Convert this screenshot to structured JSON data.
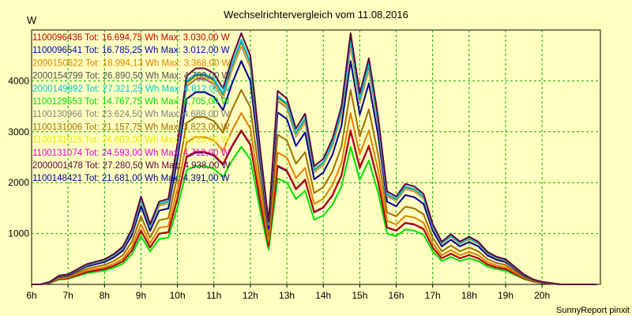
{
  "chart_data": {
    "type": "line",
    "title": "Wechselrichtervergleich vom 11.08.2016",
    "ylabel": "W",
    "footer": "SunnyReport pinxit",
    "ylim": [
      0,
      5000
    ],
    "xlim": [
      6,
      21.6
    ],
    "yticks": [
      1000,
      2000,
      3000,
      4000
    ],
    "xticks": [
      {
        "v": 6,
        "label": "6h"
      },
      {
        "v": 7,
        "label": "7h"
      },
      {
        "v": 8,
        "label": "8h"
      },
      {
        "v": 9,
        "label": "9h"
      },
      {
        "v": 10,
        "label": "10h"
      },
      {
        "v": 11,
        "label": "11h"
      },
      {
        "v": 12,
        "label": "12h"
      },
      {
        "v": 13,
        "label": "13h"
      },
      {
        "v": 14,
        "label": "14h"
      },
      {
        "v": 15,
        "label": "15h"
      },
      {
        "v": 16,
        "label": "16h"
      },
      {
        "v": 17,
        "label": "17h"
      },
      {
        "v": 18,
        "label": "18h"
      },
      {
        "v": 19,
        "label": "19h"
      },
      {
        "v": 20,
        "label": "20h"
      }
    ],
    "grid": true,
    "x": [
      6.0,
      6.25,
      6.5,
      6.75,
      7.0,
      7.25,
      7.5,
      7.75,
      8.0,
      8.25,
      8.5,
      8.75,
      9.0,
      9.25,
      9.5,
      9.75,
      10.0,
      10.25,
      10.5,
      10.75,
      11.0,
      11.25,
      11.5,
      11.75,
      12.0,
      12.25,
      12.5,
      12.75,
      13.0,
      13.25,
      13.5,
      13.75,
      14.0,
      14.25,
      14.5,
      14.75,
      15.0,
      15.25,
      15.5,
      15.75,
      16.0,
      16.25,
      16.5,
      16.75,
      17.0,
      17.25,
      17.5,
      17.75,
      18.0,
      18.25,
      18.5,
      18.75,
      19.0,
      19.25,
      19.5,
      19.75,
      20.0,
      20.25,
      20.5,
      20.75,
      21.0,
      21.25,
      21.5
    ],
    "profile": [
      0,
      0,
      0.01,
      0.035,
      0.04,
      0.06,
      0.08,
      0.09,
      0.1,
      0.12,
      0.15,
      0.22,
      0.35,
      0.24,
      0.33,
      0.34,
      0.56,
      0.83,
      0.86,
      0.86,
      0.84,
      0.78,
      0.9,
      1.0,
      0.91,
      0.56,
      0.25,
      0.77,
      0.74,
      0.62,
      0.68,
      0.47,
      0.5,
      0.58,
      0.71,
      1.0,
      0.76,
      0.9,
      0.67,
      0.37,
      0.35,
      0.4,
      0.39,
      0.36,
      0.24,
      0.17,
      0.2,
      0.17,
      0.19,
      0.17,
      0.13,
      0.11,
      0.1,
      0.07,
      0.04,
      0.02,
      0.01,
      0.005,
      0,
      0,
      0,
      0,
      0
    ],
    "series": [
      {
        "name": "1100096436",
        "total": "16.694,75",
        "max": "3.030,00",
        "max_w": 3030,
        "color": "#c00000"
      },
      {
        "name": "1100096541",
        "total": "16.785,25",
        "max": "3.012,00",
        "max_w": 3012,
        "color": "#0000c0"
      },
      {
        "name": "2000150622",
        "total": "18.994,13",
        "max": "3.368,00",
        "max_w": 3368,
        "color": "#e08000"
      },
      {
        "name": "2000154799",
        "total": "26.890,50",
        "max": "4.780,00",
        "max_w": 4780,
        "color": "#505050"
      },
      {
        "name": "2000149892",
        "total": "27.321,25",
        "max": "4.812,00",
        "max_w": 4812,
        "color": "#00c8d8"
      },
      {
        "name": "1100129553",
        "total": "14.767,75",
        "max": "2.705,00",
        "max_w": 2705,
        "color": "#00e000"
      },
      {
        "name": "1100130966",
        "total": "23.624,50",
        "max": "4.688,00",
        "max_w": 4688,
        "color": "#808080"
      },
      {
        "name": "1100131006",
        "total": "21.157,75",
        "max": "3.823,00",
        "max_w": 3823,
        "color": "#a07000"
      },
      {
        "name": "1100131025",
        "total": "24.603,00",
        "max": "4.725,00",
        "max_w": 4725,
        "color": "#e8e800"
      },
      {
        "name": "1100131074",
        "total": "24.593,00",
        "max": "4.712,00",
        "max_w": 4712,
        "color": "#e000e0"
      },
      {
        "name": "2000001478",
        "total": "27.280,50",
        "max": "4.938,00",
        "max_w": 4938,
        "color": "#600040"
      },
      {
        "name": "1100148421",
        "total": "21.681,00",
        "max": "4.391,00",
        "max_w": 4391,
        "color": "#000090"
      }
    ],
    "legend_template": {
      "tot": "Tot:",
      "wh": "Wh",
      "max": "Max:",
      "w": "W"
    }
  }
}
